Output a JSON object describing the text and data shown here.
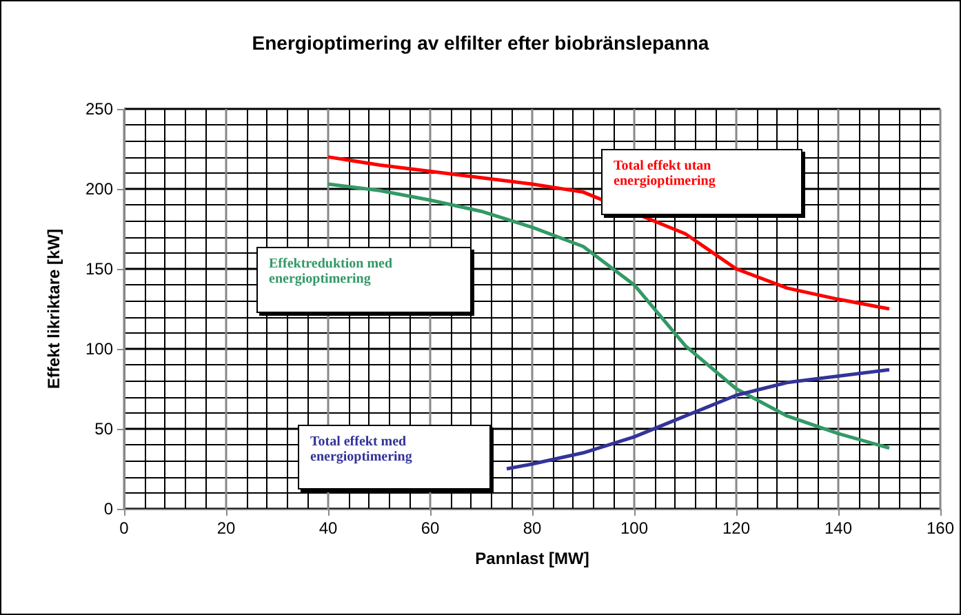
{
  "chart_data": {
    "type": "line",
    "title": "Energioptimering av elfilter efter biobränslepanna",
    "xlabel": "Pannlast [MW]",
    "ylabel": "Effekt likriktare [kW]",
    "x": [
      40,
      50,
      60,
      70,
      80,
      90,
      100,
      110,
      120,
      130,
      140,
      150
    ],
    "series": [
      {
        "name": "Total effekt utan energioptimering",
        "color": "#ff0000",
        "values": [
          220,
          215,
          211,
          207,
          203,
          198,
          null,
          172,
          150,
          138,
          131,
          125
        ]
      },
      {
        "name": "Effektreduktion med energioptimering",
        "color": "#339966",
        "values": [
          203,
          199,
          193,
          186,
          176,
          164,
          140,
          102,
          75,
          58,
          47,
          38
        ]
      },
      {
        "name": "Total effekt med energioptimering",
        "color": "#333399",
        "x": [
          75,
          80,
          90,
          100,
          110,
          120,
          130,
          140,
          150
        ],
        "values": [
          25,
          28,
          35,
          45,
          58,
          71,
          79,
          83,
          87
        ]
      }
    ],
    "xlim": [
      0,
      160
    ],
    "xticks": [
      0,
      20,
      40,
      60,
      80,
      100,
      120,
      140,
      160
    ],
    "ylim": [
      0,
      250
    ],
    "yticks": [
      0,
      50,
      100,
      150,
      200,
      250
    ],
    "grid": true,
    "marker": "none",
    "line_style": "solid"
  }
}
